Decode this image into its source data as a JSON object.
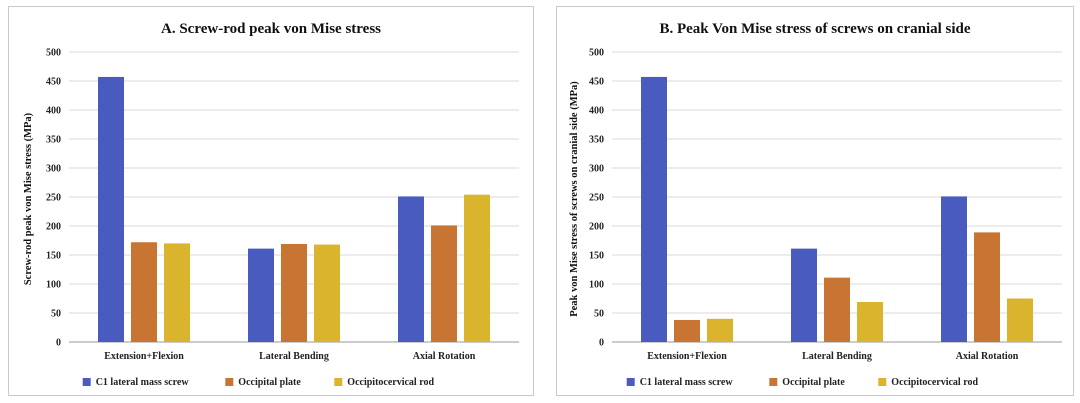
{
  "chart_data": [
    {
      "type": "bar",
      "title": "A. Screw-rod peak von Mise stress",
      "xlabel": "",
      "ylabel": "Screw-rod peak von Mise stress (MPa)",
      "ylim": [
        0,
        500
      ],
      "yticks": [
        0,
        50,
        100,
        150,
        200,
        250,
        300,
        350,
        400,
        450,
        500
      ],
      "categories": [
        "Extension+Flexion",
        "Lateral Bending",
        "Axial Rotation"
      ],
      "series": [
        {
          "name": "C1 lateral mass screw",
          "color": "#4a5bbf",
          "values": [
            457,
            161,
            251
          ]
        },
        {
          "name": "Occipital plate",
          "color": "#c87433",
          "values": [
            172,
            169,
            201
          ]
        },
        {
          "name": "Occipitocervical rod",
          "color": "#d9b42c",
          "values": [
            170,
            168,
            254
          ]
        }
      ],
      "grid": true,
      "legend": "bottom"
    },
    {
      "type": "bar",
      "title": "B. Peak Von Mise stress of screws on cranial side",
      "xlabel": "",
      "ylabel": "Peak von Mise stress of screws on cranial side (MPa)",
      "ylim": [
        0,
        500
      ],
      "yticks": [
        0,
        50,
        100,
        150,
        200,
        250,
        300,
        350,
        400,
        450,
        500
      ],
      "categories": [
        "Extension+Flexion",
        "Lateral Bending",
        "Axial Rotation"
      ],
      "series": [
        {
          "name": "C1 lateral mass screw",
          "color": "#4a5bbf",
          "values": [
            457,
            161,
            251
          ]
        },
        {
          "name": "Occipital plate",
          "color": "#c87433",
          "values": [
            38,
            111,
            189
          ]
        },
        {
          "name": "Occipitocervical rod",
          "color": "#d9b42c",
          "values": [
            40,
            69,
            75
          ]
        }
      ],
      "grid": true,
      "legend": "bottom"
    }
  ]
}
